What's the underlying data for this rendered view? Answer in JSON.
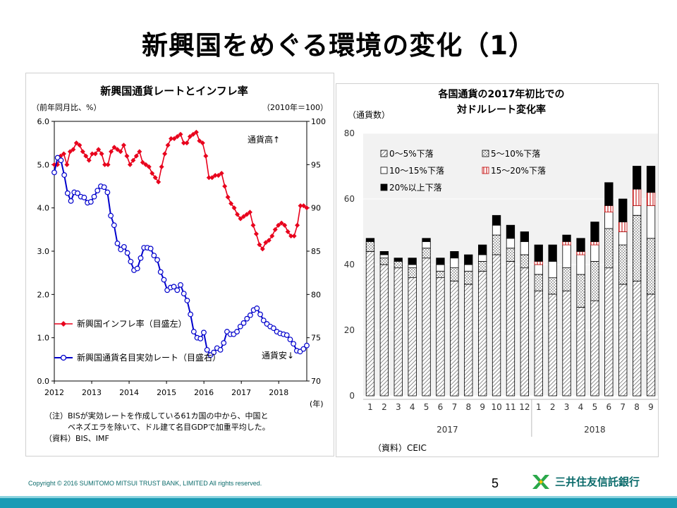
{
  "slide": {
    "title": "新興国をめぐる環境の変化（1）",
    "page_number": "5",
    "copyright": "Copyright © 2016 SUMITOMO  MITSUI  TRUST  BANK, LIMITED   All rights reserved.",
    "bank_name": "三井住友信託銀行"
  },
  "colors": {
    "inflation": "#e8001c",
    "currency": "#0000cc",
    "footer": "#1a9bb5"
  },
  "chart_data": [
    {
      "type": "line",
      "title": "新興国通貨レートとインフレ率",
      "left_axis_label": "（前年同月比、%）",
      "right_axis_label": "（2010年＝100）",
      "x_unit": "(年)",
      "ylim_left": [
        0,
        6
      ],
      "ylim_right": [
        70,
        100
      ],
      "yticks_left": [
        "0.0",
        "1.0",
        "2.0",
        "3.0",
        "4.0",
        "5.0",
        "6.0"
      ],
      "yticks_right": [
        "70",
        "75",
        "80",
        "85",
        "90",
        "95",
        "100"
      ],
      "xticks": [
        "2012",
        "2013",
        "2014",
        "2015",
        "2016",
        "2017",
        "2018"
      ],
      "xlim": [
        2012,
        2018.75
      ],
      "annotation_top": "通貨高↑",
      "annotation_bottom": "通貨安↓",
      "note_lines": [
        "（注）BISが実効レートを作成している61カ国の中から、中国と",
        "　　　ベネズエラを除いて、ドル建て名目GDPで加重平均した。",
        "（資料）BIS、IMF"
      ],
      "series": [
        {
          "name": "新興国インフレ率（目盛左）",
          "axis": "left",
          "values": [
            5.0,
            5.0,
            5.2,
            5.25,
            5.0,
            5.3,
            5.35,
            5.5,
            5.45,
            5.3,
            5.2,
            5.1,
            5.25,
            5.25,
            5.35,
            5.25,
            5.0,
            5.0,
            5.3,
            5.4,
            5.35,
            5.3,
            5.45,
            5.2,
            5.0,
            5.1,
            5.2,
            5.3,
            5.05,
            5.0,
            4.95,
            4.8,
            4.7,
            4.6,
            4.95,
            5.25,
            5.45,
            5.6,
            5.6,
            5.65,
            5.7,
            5.5,
            5.5,
            5.65,
            5.7,
            5.75,
            5.55,
            5.5,
            5.2,
            4.7,
            4.7,
            4.75,
            4.75,
            4.8,
            4.5,
            4.25,
            4.1,
            4.0,
            3.85,
            3.75,
            3.8,
            3.85,
            3.9,
            3.6,
            3.4,
            3.15,
            3.05,
            3.2,
            3.25,
            3.35,
            3.5,
            3.6,
            3.65,
            3.6,
            3.45,
            3.35,
            3.35,
            3.6,
            4.05,
            4.05,
            4.0
          ]
        },
        {
          "name": "新興国通貨名目実効レート（目盛右）",
          "axis": "right",
          "values": [
            94.1,
            95.8,
            95.5,
            93.8,
            91.7,
            90.8,
            91.8,
            91.7,
            91.3,
            91.2,
            90.6,
            90.7,
            91.3,
            92.0,
            92.5,
            92.4,
            91.8,
            89.1,
            88.0,
            85.9,
            85.2,
            85.5,
            84.8,
            83.8,
            82.8,
            83.0,
            84.2,
            85.4,
            85.4,
            85.3,
            84.5,
            84.0,
            82.6,
            81.7,
            80.5,
            80.8,
            80.9,
            80.5,
            81.1,
            80.1,
            79.3,
            77.7,
            75.7,
            75.0,
            74.9,
            75.6,
            73.6,
            73.0,
            73.3,
            73.8,
            73.6,
            74.4,
            75.7,
            75.4,
            75.4,
            75.7,
            76.3,
            76.7,
            77.2,
            77.6,
            78.2,
            78.4,
            77.7,
            77.0,
            76.6,
            76.3,
            76.1,
            75.7,
            75.5,
            75.4,
            75.3,
            74.8,
            74.3,
            73.5,
            73.4,
            73.7,
            74.1
          ]
        }
      ]
    },
    {
      "type": "bar",
      "stacked": true,
      "title_line1": "各国通貨の2017年初比での",
      "title_line2": "対ドルレート変化率",
      "ylabel": "（通貨数）",
      "ylim": [
        0,
        80
      ],
      "yticks": [
        "0",
        "20",
        "40",
        "60",
        "80"
      ],
      "categories": [
        "1",
        "2",
        "3",
        "4",
        "5",
        "6",
        "7",
        "8",
        "9",
        "10",
        "11",
        "12",
        "1",
        "2",
        "3",
        "4",
        "5",
        "6",
        "7",
        "8",
        "9"
      ],
      "year_labels": [
        {
          "label": "2017",
          "span": 12
        },
        {
          "label": "2018",
          "span": 9
        }
      ],
      "source": "（資料）CEIC",
      "series": [
        {
          "name": "0～5%下落",
          "values": [
            44,
            40,
            39,
            36,
            42,
            36,
            35,
            34,
            38,
            43,
            41,
            39,
            32,
            31,
            32,
            27,
            29,
            39,
            34,
            35,
            31
          ]
        },
        {
          "name": "5～10%下落",
          "values": [
            3,
            2,
            2,
            3,
            3,
            2,
            4,
            4,
            3,
            6,
            4,
            4,
            5,
            5,
            7,
            10,
            12,
            12,
            12,
            20,
            17
          ]
        },
        {
          "name": "10～15%下落",
          "values": [
            0,
            1,
            0,
            1,
            2,
            2,
            3,
            2,
            2,
            3,
            3,
            4,
            3,
            5,
            7,
            6,
            5,
            5,
            4,
            3,
            10
          ]
        },
        {
          "name": "15～20%下落",
          "values": [
            0,
            0,
            0,
            0,
            0,
            0,
            0,
            0,
            0,
            0,
            0,
            0,
            1,
            0,
            1,
            1,
            1,
            2,
            3,
            5,
            4
          ]
        },
        {
          "name": "20%以上下落",
          "values": [
            1,
            1,
            1,
            2,
            1,
            2,
            2,
            3,
            3,
            3,
            4,
            3,
            5,
            5,
            2,
            4,
            6,
            7,
            7,
            7,
            8
          ]
        }
      ]
    }
  ]
}
